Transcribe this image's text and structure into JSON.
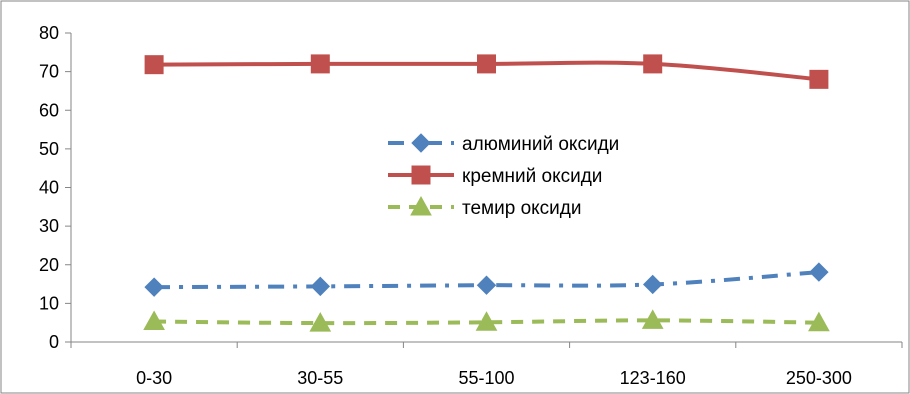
{
  "chart_data": {
    "type": "line",
    "categories": [
      "0-30",
      "30-55",
      "55-100",
      "123-160",
      "250-300"
    ],
    "series": [
      {
        "name": "алюминий оксиди",
        "values": [
          14.2,
          14.4,
          14.7,
          14.9,
          18.1
        ],
        "color": "#4F81BD",
        "marker": "diamond",
        "dash": "dash-dot"
      },
      {
        "name": "кремний оксиди",
        "values": [
          71.8,
          72.0,
          72.0,
          72.0,
          68.0
        ],
        "color": "#C0504D",
        "marker": "square",
        "dash": "solid"
      },
      {
        "name": "темир оксиди",
        "values": [
          5.3,
          4.9,
          5.1,
          5.6,
          5.0
        ],
        "color": "#9BBB59",
        "marker": "triangle",
        "dash": "dash"
      }
    ],
    "yticks": [
      "0",
      "10",
      "20",
      "30",
      "40",
      "50",
      "60",
      "70",
      "80"
    ],
    "ylim": [
      0,
      80
    ],
    "grid": false,
    "legend_position": "center-right",
    "title": "",
    "xlabel": "",
    "ylabel": ""
  }
}
